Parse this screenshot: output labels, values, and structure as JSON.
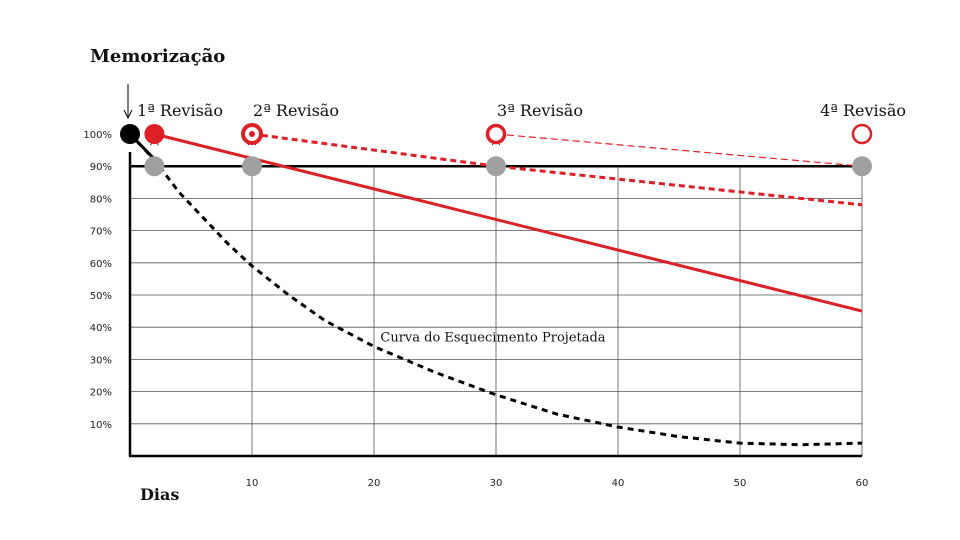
{
  "chart_data": {
    "type": "line",
    "title": "Memorização",
    "xlabel": "Dias",
    "ylabel": "",
    "xlim": [
      0,
      60
    ],
    "ylim": [
      0,
      100
    ],
    "x_ticks": [
      10,
      20,
      30,
      40,
      50,
      60
    ],
    "y_ticks": [
      10,
      20,
      30,
      40,
      50,
      60,
      70,
      80,
      90,
      100
    ],
    "y_tick_suffix": "%",
    "grid": true,
    "threshold_line": 90,
    "annotation": {
      "text": "Curva do Esquecimento Projetada",
      "x": 22,
      "y": 35
    },
    "forgetting_curve": [
      {
        "x": 0,
        "y": 100
      },
      {
        "x": 2,
        "y": 92
      },
      {
        "x": 4,
        "y": 82
      },
      {
        "x": 6,
        "y": 74
      },
      {
        "x": 8,
        "y": 66
      },
      {
        "x": 10,
        "y": 59
      },
      {
        "x": 13,
        "y": 50
      },
      {
        "x": 16,
        "y": 42
      },
      {
        "x": 20,
        "y": 34
      },
      {
        "x": 25,
        "y": 26
      },
      {
        "x": 30,
        "y": 19
      },
      {
        "x": 35,
        "y": 13
      },
      {
        "x": 40,
        "y": 9
      },
      {
        "x": 45,
        "y": 6
      },
      {
        "x": 50,
        "y": 4
      },
      {
        "x": 55,
        "y": 3.5
      },
      {
        "x": 60,
        "y": 4
      }
    ],
    "series": [
      {
        "style": "solid",
        "color": "#dd1f26",
        "points": [
          {
            "x": 2,
            "y": 100
          },
          {
            "x": 60,
            "y": 45
          }
        ]
      },
      {
        "style": "dashed-thick",
        "color": "#dd1f26",
        "points": [
          {
            "x": 10,
            "y": 100
          },
          {
            "x": 30,
            "y": 90
          },
          {
            "x": 60,
            "y": 78
          }
        ]
      },
      {
        "style": "dashed-thin",
        "color": "#dd1f26",
        "points": [
          {
            "x": 30,
            "y": 100
          },
          {
            "x": 60,
            "y": 90
          }
        ]
      }
    ],
    "memorization_point": {
      "x": 0,
      "y": 100,
      "color": "#000000"
    },
    "revisions": [
      {
        "label": "1ª Revisão",
        "x": 2,
        "marker": "filled"
      },
      {
        "label": "2ª Revisão",
        "x": 10,
        "marker": "ring-dot"
      },
      {
        "label": "3ª Revisão",
        "x": 30,
        "marker": "ring"
      },
      {
        "label": "4ª Revisão",
        "x": 60,
        "marker": "ring-thin"
      }
    ],
    "gray_points": [
      {
        "x": 2,
        "y": 90
      },
      {
        "x": 10,
        "y": 90
      },
      {
        "x": 30,
        "y": 90
      },
      {
        "x": 60,
        "y": 90
      }
    ],
    "colors": {
      "red": "#dd1f26",
      "gray": "#a0a0a0",
      "black": "#000000"
    }
  }
}
